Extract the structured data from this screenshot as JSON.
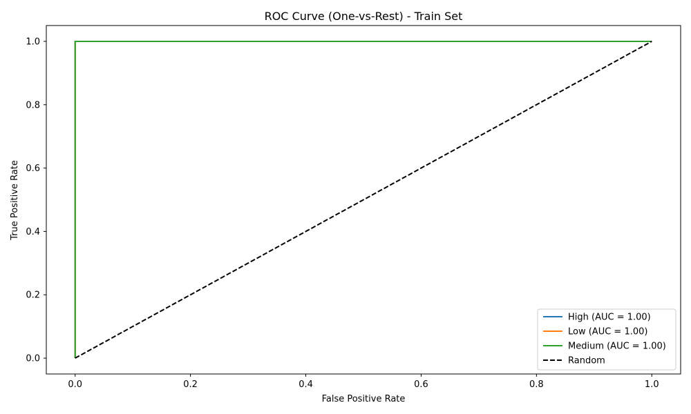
{
  "chart_data": {
    "type": "line",
    "title": "ROC Curve (One-vs-Rest) - Train Set",
    "xlabel": "False Positive Rate",
    "ylabel": "True Positive Rate",
    "xlim": [
      -0.05,
      1.05
    ],
    "ylim": [
      -0.05,
      1.05
    ],
    "xticks": [
      0.0,
      0.2,
      0.4,
      0.6,
      0.8,
      1.0
    ],
    "yticks": [
      0.0,
      0.2,
      0.4,
      0.6,
      0.8,
      1.0
    ],
    "xtick_labels": [
      "0.0",
      "0.2",
      "0.4",
      "0.6",
      "0.8",
      "1.0"
    ],
    "ytick_labels": [
      "0.0",
      "0.2",
      "0.4",
      "0.6",
      "0.8",
      "1.0"
    ],
    "grid": false,
    "legend_position": "bottom-right",
    "series": [
      {
        "name": "High (AUC = 1.00)",
        "color": "#1f77b4",
        "dash": "solid",
        "x": [
          0.0,
          0.0,
          1.0
        ],
        "y": [
          0.0,
          1.0,
          1.0
        ]
      },
      {
        "name": "Low (AUC = 1.00)",
        "color": "#ff7f0e",
        "dash": "solid",
        "x": [
          0.0,
          0.0,
          1.0
        ],
        "y": [
          0.0,
          1.0,
          1.0
        ]
      },
      {
        "name": "Medium (AUC = 1.00)",
        "color": "#2ca02c",
        "dash": "solid",
        "x": [
          0.0,
          0.0,
          1.0
        ],
        "y": [
          0.0,
          1.0,
          1.0
        ]
      },
      {
        "name": "Random",
        "color": "#000000",
        "dash": "dashed",
        "x": [
          0.0,
          1.0
        ],
        "y": [
          0.0,
          1.0
        ]
      }
    ]
  }
}
